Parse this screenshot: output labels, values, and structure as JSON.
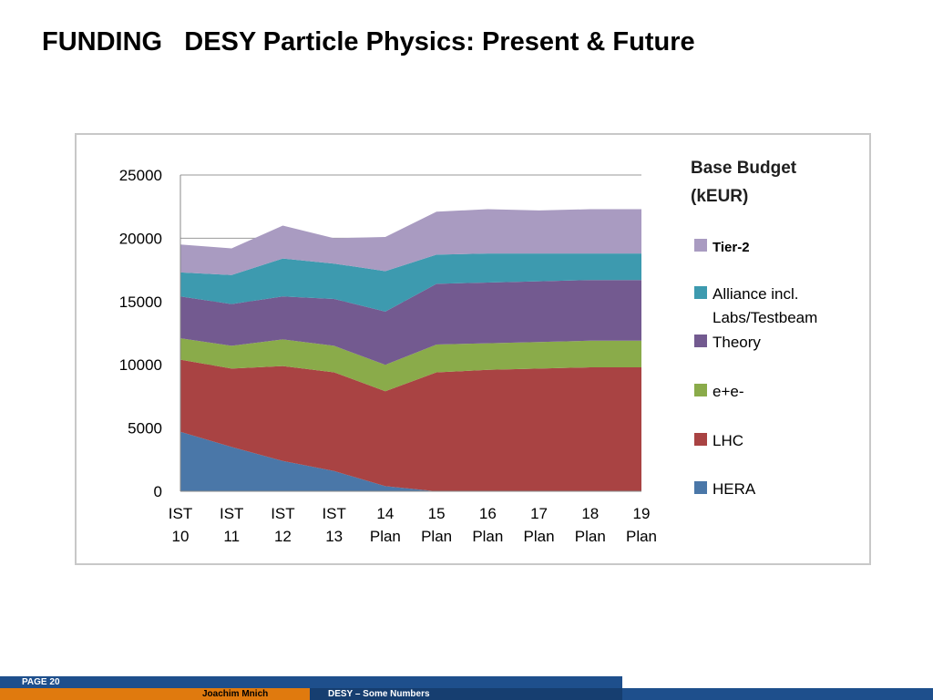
{
  "slide": {
    "title": "FUNDING   DESY Particle Physics: Present & Future"
  },
  "chart_data": {
    "type": "area",
    "stacked": true,
    "title": "Base Budget (kEUR)",
    "title_lines": [
      "Base Budget",
      "(kEUR)"
    ],
    "categories": [
      [
        "IST",
        "10"
      ],
      [
        "IST",
        "11"
      ],
      [
        "IST",
        "12"
      ],
      [
        "IST",
        "13"
      ],
      [
        "14",
        "Plan"
      ],
      [
        "15",
        "Plan"
      ],
      [
        "16",
        "Plan"
      ],
      [
        "17",
        "Plan"
      ],
      [
        "18",
        "Plan"
      ],
      [
        "19",
        "Plan"
      ]
    ],
    "ylim": [
      0,
      25000
    ],
    "yticks": [
      0,
      5000,
      10000,
      15000,
      20000,
      25000
    ],
    "grid": "horizontal",
    "legend_position": "right",
    "series": [
      {
        "name": "HERA",
        "color": "#4a77a8",
        "values": [
          4700,
          3500,
          2400,
          1600,
          400,
          0,
          0,
          0,
          0,
          0
        ]
      },
      {
        "name": "LHC",
        "color": "#a94343",
        "values": [
          5700,
          6200,
          7500,
          7800,
          7500,
          9400,
          9600,
          9700,
          9800,
          9800
        ]
      },
      {
        "name": "e+e-",
        "color": "#8aab4a",
        "values": [
          1700,
          1800,
          2100,
          2100,
          2100,
          2200,
          2100,
          2100,
          2100,
          2100
        ]
      },
      {
        "name": "Theory",
        "color": "#735a90",
        "values": [
          3300,
          3300,
          3400,
          3700,
          4200,
          4800,
          4800,
          4800,
          4800,
          4800
        ]
      },
      {
        "name": "Alliance incl. Labs/Testbeam",
        "color": "#3d9aaf",
        "values": [
          1900,
          2300,
          3000,
          2800,
          3200,
          2300,
          2300,
          2200,
          2100,
          2100
        ]
      },
      {
        "name": "Tier-2",
        "color": "#a99bc1",
        "values": [
          2200,
          2100,
          2600,
          2000,
          2700,
          3400,
          3500,
          3400,
          3500,
          3500
        ]
      }
    ],
    "legend": [
      {
        "label_lines": [
          "Tier-2"
        ],
        "color": "#a99bc1",
        "font": "arial"
      },
      {
        "label_lines": [
          "Alliance incl.",
          "Labs/Testbeam"
        ],
        "color": "#3d9aaf"
      },
      {
        "label_lines": [
          "Theory"
        ],
        "color": "#735a90"
      },
      {
        "label_lines": [
          "e+e-"
        ],
        "color": "#8aab4a"
      },
      {
        "label_lines": [
          "LHC"
        ],
        "color": "#a94343"
      },
      {
        "label_lines": [
          "HERA"
        ],
        "color": "#4a77a8"
      }
    ]
  },
  "footer": {
    "page": "PAGE 20",
    "author": "Joachim Mnich",
    "subject": "DESY – Some Numbers"
  }
}
